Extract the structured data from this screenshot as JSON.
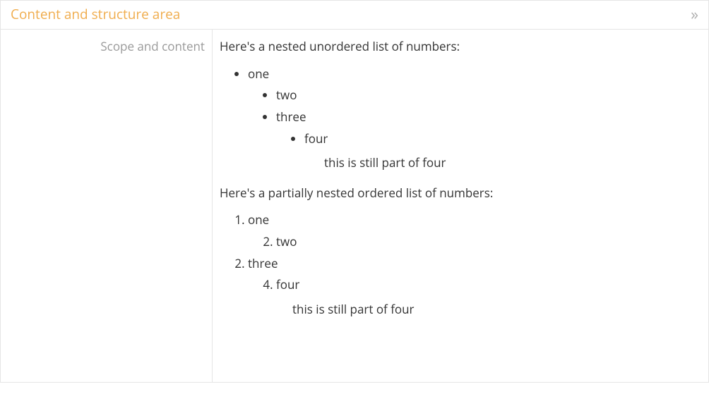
{
  "colors": {
    "accent": "#f0ad4e",
    "muted": "#999999",
    "text": "#333333",
    "border": "#e5e5e5",
    "background": "#ffffff"
  },
  "header": {
    "title": "Content and structure area",
    "collapse_glyph": "»"
  },
  "field": {
    "label": "Scope and content",
    "para1": "Here's a nested unordered list of numbers:",
    "ul": {
      "i1": "one",
      "i1_children": {
        "i1": "two",
        "i2": "three",
        "i2_children": {
          "i1": "four",
          "i1_note": "this is still part of four"
        }
      }
    },
    "para2": "Here's a partially nested ordered list of numbers:",
    "ol": {
      "i1": {
        "value": 1,
        "text": "one"
      },
      "i1_children": {
        "i1": {
          "value": 2,
          "text": "two"
        }
      },
      "i2": {
        "value": 2,
        "text": "three"
      },
      "i2_children": {
        "i1": {
          "value": 4,
          "text": "four"
        },
        "i1_note": "this is still part of four"
      }
    }
  }
}
